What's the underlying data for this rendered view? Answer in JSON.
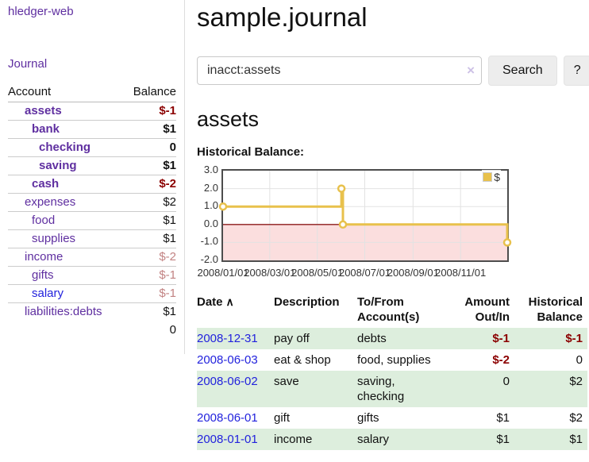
{
  "sidebar": {
    "app_title": "hledger-web",
    "journal_label": "Journal",
    "accounts_header": {
      "account": "Account",
      "balance": "Balance"
    },
    "accounts": [
      {
        "name": "assets",
        "depth": 1,
        "balance": "$-1",
        "bold": true,
        "balance_class": "neg-strong",
        "link_blue": false
      },
      {
        "name": "bank",
        "depth": 2,
        "balance": "$1",
        "bold": true,
        "balance_class": "",
        "link_blue": false
      },
      {
        "name": "checking",
        "depth": 3,
        "balance": "0",
        "bold": true,
        "balance_class": "",
        "link_blue": false
      },
      {
        "name": "saving",
        "depth": 3,
        "balance": "$1",
        "bold": true,
        "balance_class": "",
        "link_blue": false
      },
      {
        "name": "cash",
        "depth": 2,
        "balance": "$-2",
        "bold": true,
        "balance_class": "neg-strong",
        "link_blue": false
      },
      {
        "name": "expenses",
        "depth": 1,
        "balance": "$2",
        "bold": false,
        "balance_class": "",
        "link_blue": false
      },
      {
        "name": "food",
        "depth": 2,
        "balance": "$1",
        "bold": false,
        "balance_class": "",
        "link_blue": false
      },
      {
        "name": "supplies",
        "depth": 2,
        "balance": "$1",
        "bold": false,
        "balance_class": "",
        "link_blue": false
      },
      {
        "name": "income",
        "depth": 1,
        "balance": "$-2",
        "bold": false,
        "balance_class": "neg-muted",
        "link_blue": false
      },
      {
        "name": "gifts",
        "depth": 2,
        "balance": "$-1",
        "bold": false,
        "balance_class": "neg-muted",
        "link_blue": false
      },
      {
        "name": "salary",
        "depth": 2,
        "balance": "$-1",
        "bold": false,
        "balance_class": "neg-muted",
        "link_blue": true
      },
      {
        "name": "liabilities:debts",
        "depth": 1,
        "balance": "$1",
        "bold": false,
        "balance_class": "",
        "link_blue": false
      }
    ],
    "total": "0"
  },
  "main": {
    "title": "sample.journal",
    "search": {
      "value": "inacct:assets",
      "clear_icon": "×",
      "button_label": "Search",
      "help_label": "?"
    },
    "account_heading": "assets",
    "chart_label": "Historical Balance:"
  },
  "chart_data": {
    "type": "line",
    "step": true,
    "title": "Historical Balance:",
    "series": [
      {
        "name": "$",
        "color": "#e8c14c",
        "points": [
          [
            "2008-01-01",
            1
          ],
          [
            "2008-06-01",
            2
          ],
          [
            "2008-06-03",
            0
          ],
          [
            "2008-12-31",
            -1
          ]
        ]
      }
    ],
    "xlim": [
      "2008-01-01",
      "2008-12-31"
    ],
    "ylim": [
      -2,
      3
    ],
    "x_tick_labels": [
      "2008/01/01",
      "2008/03/01",
      "2008/05/01",
      "2008/07/01",
      "2008/09/01",
      "2008/11/01"
    ],
    "y_tick_labels": [
      "3.0",
      "2.0",
      "1.0",
      "0.0",
      "-1.0",
      "-2.0"
    ],
    "legend": "$",
    "legend_position": "top-right",
    "grid": true,
    "grid_color": "#e2e2e2",
    "negative_region_color": "#fbdede",
    "zero_line_color": "#8b1a1a",
    "border_color": "#4d4d4d"
  },
  "register": {
    "columns": [
      {
        "lines": [
          "Date"
        ],
        "align": "left",
        "sort_icon": "∧"
      },
      {
        "lines": [
          "Description"
        ],
        "align": "left"
      },
      {
        "lines": [
          "To/From",
          "Account(s)"
        ],
        "align": "left"
      },
      {
        "lines": [
          "Amount",
          "Out/In"
        ],
        "align": "right"
      },
      {
        "lines": [
          "Historical",
          "Balance"
        ],
        "align": "right"
      }
    ],
    "rows": [
      {
        "date": "2008-12-31",
        "description": "pay off",
        "accounts": "debts",
        "amount": "$-1",
        "amount_class": "neg-strong",
        "balance": "$-1",
        "balance_class": "neg-strong"
      },
      {
        "date": "2008-06-03",
        "description": "eat & shop",
        "accounts": "food, supplies",
        "amount": "$-2",
        "amount_class": "neg-strong",
        "balance": "0",
        "balance_class": ""
      },
      {
        "date": "2008-06-02",
        "description": "save",
        "accounts": "saving, checking",
        "amount": "0",
        "amount_class": "",
        "balance": "$2",
        "balance_class": ""
      },
      {
        "date": "2008-06-01",
        "description": "gift",
        "accounts": "gifts",
        "amount": "$1",
        "amount_class": "",
        "balance": "$2",
        "balance_class": ""
      },
      {
        "date": "2008-01-01",
        "description": "income",
        "accounts": "salary",
        "amount": "$1",
        "amount_class": "",
        "balance": "$1",
        "balance_class": ""
      }
    ]
  }
}
